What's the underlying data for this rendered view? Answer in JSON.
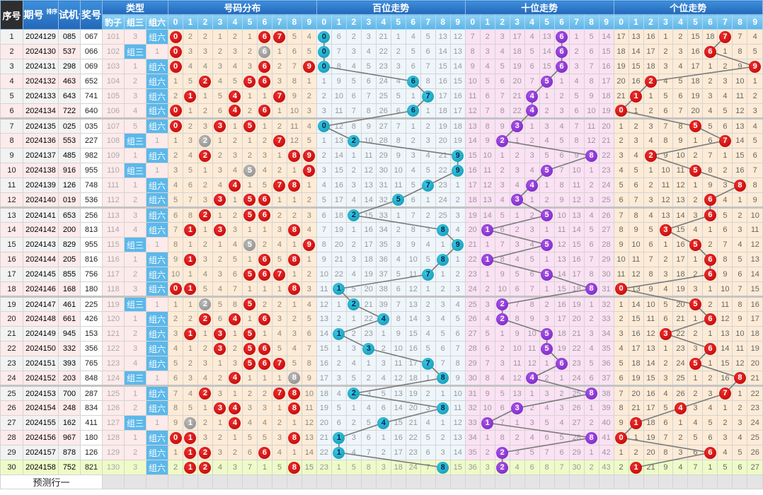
{
  "header": {
    "seq": "序号",
    "issue": "期号",
    "sort": "排序",
    "test": "试机号",
    "prize": "奖号",
    "type": "类型",
    "type_cols": [
      "豹子",
      "组三",
      "组六"
    ],
    "sections": [
      "号码分布",
      "百位走势",
      "十位走势",
      "个位走势"
    ],
    "digits": [
      "0",
      "1",
      "2",
      "3",
      "4",
      "5",
      "6",
      "7",
      "8",
      "9"
    ]
  },
  "rows": [
    {
      "seq": "1",
      "issue": "2024129",
      "test": "085",
      "prize": "067"
    },
    {
      "seq": "2",
      "issue": "2024130",
      "test": "537",
      "prize": "066"
    },
    {
      "seq": "3",
      "issue": "2024131",
      "test": "298",
      "prize": "069"
    },
    {
      "seq": "4",
      "issue": "2024132",
      "test": "463",
      "prize": "652"
    },
    {
      "seq": "5",
      "issue": "2024133",
      "test": "643",
      "prize": "741"
    },
    {
      "seq": "6",
      "issue": "2024134",
      "test": "722",
      "prize": "640"
    },
    {
      "seq": "7",
      "issue": "2024135",
      "test": "025",
      "prize": "035"
    },
    {
      "seq": "8",
      "issue": "2024136",
      "test": "553",
      "prize": "227"
    },
    {
      "seq": "9",
      "issue": "2024137",
      "test": "485",
      "prize": "982"
    },
    {
      "seq": "10",
      "issue": "2024138",
      "test": "916",
      "prize": "955"
    },
    {
      "seq": "11",
      "issue": "2024139",
      "test": "126",
      "prize": "748"
    },
    {
      "seq": "12",
      "issue": "2024140",
      "test": "019",
      "prize": "536"
    },
    {
      "seq": "13",
      "issue": "2024141",
      "test": "653",
      "prize": "256"
    },
    {
      "seq": "14",
      "issue": "2024142",
      "test": "200",
      "prize": "813"
    },
    {
      "seq": "15",
      "issue": "2024143",
      "test": "829",
      "prize": "955"
    },
    {
      "seq": "16",
      "issue": "2024144",
      "test": "205",
      "prize": "816"
    },
    {
      "seq": "17",
      "issue": "2024145",
      "test": "855",
      "prize": "756"
    },
    {
      "seq": "18",
      "issue": "2024146",
      "test": "168",
      "prize": "180"
    },
    {
      "seq": "19",
      "issue": "2024147",
      "test": "461",
      "prize": "225"
    },
    {
      "seq": "20",
      "issue": "2024148",
      "test": "661",
      "prize": "426"
    },
    {
      "seq": "21",
      "issue": "2024149",
      "test": "945",
      "prize": "153"
    },
    {
      "seq": "22",
      "issue": "2024150",
      "test": "332",
      "prize": "356"
    },
    {
      "seq": "23",
      "issue": "2024151",
      "test": "393",
      "prize": "765"
    },
    {
      "seq": "24",
      "issue": "2024152",
      "test": "203",
      "prize": "848"
    },
    {
      "seq": "25",
      "issue": "2024153",
      "test": "700",
      "prize": "287"
    },
    {
      "seq": "26",
      "issue": "2024154",
      "test": "248",
      "prize": "834"
    },
    {
      "seq": "27",
      "issue": "2024155",
      "test": "162",
      "prize": "411"
    },
    {
      "seq": "28",
      "issue": "2024156",
      "test": "967",
      "prize": "180"
    },
    {
      "seq": "29",
      "issue": "2024157",
      "test": "878",
      "prize": "126"
    },
    {
      "seq": "30",
      "issue": "2024158",
      "test": "752",
      "prize": "821"
    }
  ],
  "first_row_omission": {
    "baozi": 101,
    "zusan": 3,
    "zuliu": 0,
    "distribution": [
      0,
      2,
      2,
      1,
      2,
      1,
      0,
      0,
      5,
      4
    ],
    "hundreds": [
      0,
      6,
      2,
      3,
      21,
      1,
      4,
      5,
      13,
      12
    ],
    "tens": [
      7,
      2,
      3,
      17,
      4,
      13,
      0,
      1,
      5,
      14
    ],
    "units": [
      17,
      13,
      16,
      1,
      2,
      15,
      18,
      0,
      7,
      4
    ]
  },
  "footer": {
    "predict": "预测行一"
  },
  "colors": {
    "header": "#2468b8",
    "subheader": "#5db4e6",
    "dist_ball": "#cc0000",
    "repeat_ball": "#999999",
    "hundreds_ball": "#0e93b4",
    "tens_ball": "#7420c0",
    "units_ball": "#cc0000"
  }
}
